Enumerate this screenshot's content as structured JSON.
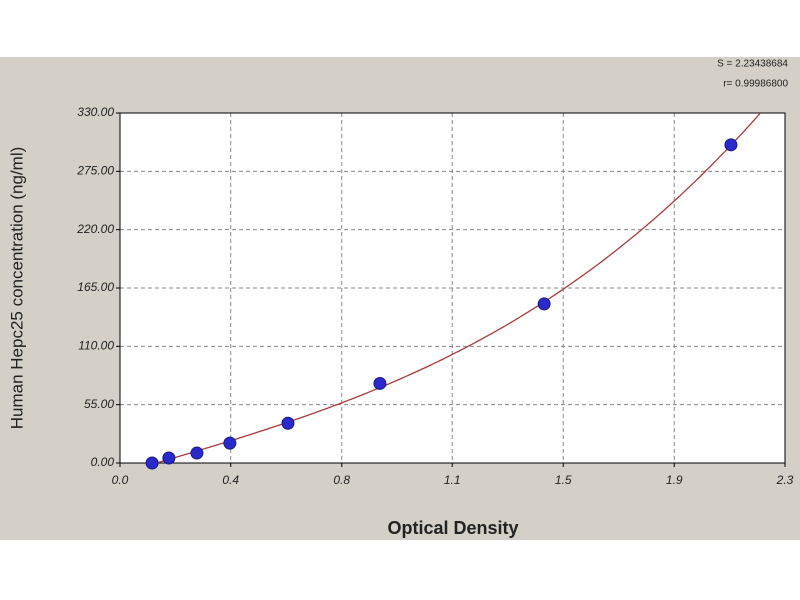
{
  "chart_data": {
    "type": "scatter",
    "annotations": [
      "S = 2.23438684",
      "r= 0.99986800"
    ],
    "x_label": "Optical Density",
    "y_label": "Human Hepc25 concentration (ng/ml)",
    "x": [
      0.111,
      0.169,
      0.266,
      0.38,
      0.581,
      0.899,
      1.467,
      2.113
    ],
    "values": [
      0,
      4.69,
      9.38,
      18.75,
      37.5,
      75,
      150,
      300
    ],
    "color": "#2a2acc",
    "curve_color": "#a83a3a",
    "xlim": [
      0,
      2.3
    ],
    "ylim": [
      0,
      330
    ],
    "xticks": [
      {
        "value": 0,
        "label": "0.0"
      },
      {
        "value": 0.383,
        "label": "0.4"
      },
      {
        "value": 0.767,
        "label": "0.8"
      },
      {
        "value": 1.149,
        "label": "1.1"
      },
      {
        "value": 1.533,
        "label": "1.5"
      },
      {
        "value": 1.917,
        "label": "1.9"
      },
      2.3
    ],
    "yticks": [
      {
        "value": 0,
        "label": "0.00"
      },
      {
        "value": 55,
        "label": "55.00"
      },
      {
        "value": 110,
        "label": "110.00"
      },
      {
        "value": 165,
        "label": "165.00"
      },
      {
        "value": 220,
        "label": "220.00"
      },
      {
        "value": 275,
        "label": "275.00"
      },
      {
        "value": 330,
        "label": "330.00"
      }
    ],
    "grid": true
  }
}
